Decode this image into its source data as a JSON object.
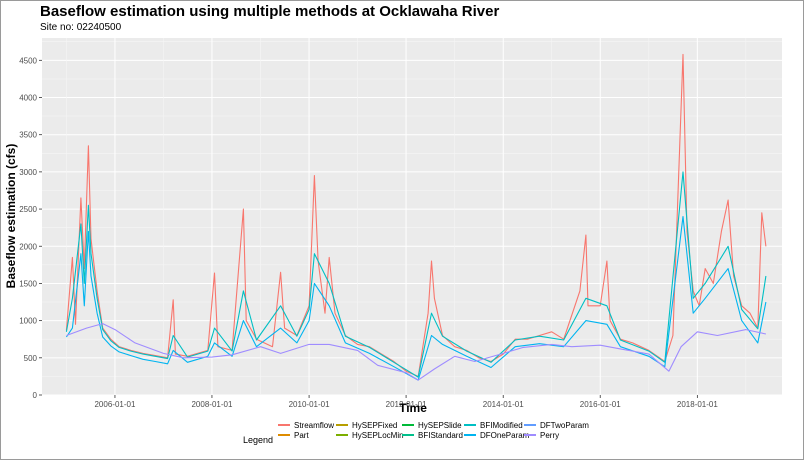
{
  "chart_data": {
    "type": "line",
    "title": "Baseflow estimation using multiple methods at Ocklawaha River",
    "subtitle": "Site no: 02240500",
    "xlabel": "Time",
    "ylabel": "Baseflow estimation (cfs)",
    "xlim": [
      "2004-07-01",
      "2019-09-30"
    ],
    "ylim": [
      0,
      4800
    ],
    "x_ticks": [
      "2006-01-01",
      "2008-01-01",
      "2010-01-01",
      "2012-01-01",
      "2014-01-01",
      "2016-01-01",
      "2018-01-01"
    ],
    "y_ticks": [
      0,
      500,
      1000,
      1500,
      2000,
      2500,
      3000,
      3500,
      4000,
      4500
    ],
    "grid": true,
    "legend": {
      "title": "Legend",
      "position": "bottom",
      "entries": [
        {
          "name": "Streamflow",
          "color": "#F8766D"
        },
        {
          "name": "Part",
          "color": "#DE8C00"
        },
        {
          "name": "HySEPFixed",
          "color": "#B79F00"
        },
        {
          "name": "HySEPLocMin",
          "color": "#7CAE00"
        },
        {
          "name": "HySEPSlide",
          "color": "#00BA38"
        },
        {
          "name": "BFIStandard",
          "color": "#00C08B"
        },
        {
          "name": "BFIModified",
          "color": "#00BFC4"
        },
        {
          "name": "DFOneParam",
          "color": "#00B4F0"
        },
        {
          "name": "DFTwoParam",
          "color": "#619CFF"
        },
        {
          "name": "Perry",
          "color": "#9F8CFF"
        }
      ]
    },
    "series": [
      {
        "name": "Streamflow",
        "color": "#F8766D",
        "points": [
          [
            "2005-01-01",
            870
          ],
          [
            "2005-02-15",
            1850
          ],
          [
            "2005-03-10",
            950
          ],
          [
            "2005-04-20",
            2650
          ],
          [
            "2005-05-15",
            1700
          ],
          [
            "2005-06-15",
            3350
          ],
          [
            "2005-07-05",
            2100
          ],
          [
            "2005-08-20",
            1400
          ],
          [
            "2005-10-01",
            900
          ],
          [
            "2005-12-01",
            750
          ],
          [
            "2006-02-01",
            650
          ],
          [
            "2006-05-01",
            600
          ],
          [
            "2006-08-01",
            560
          ],
          [
            "2006-11-01",
            530
          ],
          [
            "2007-02-01",
            500
          ],
          [
            "2007-03-15",
            1280
          ],
          [
            "2007-04-01",
            550
          ],
          [
            "2007-07-01",
            520
          ],
          [
            "2007-12-01",
            600
          ],
          [
            "2008-01-20",
            1640
          ],
          [
            "2008-02-15",
            650
          ],
          [
            "2008-06-01",
            600
          ],
          [
            "2008-08-25",
            2500
          ],
          [
            "2008-09-15",
            1000
          ],
          [
            "2008-12-01",
            750
          ],
          [
            "2009-04-01",
            650
          ],
          [
            "2009-06-01",
            1650
          ],
          [
            "2009-07-01",
            900
          ],
          [
            "2009-10-01",
            800
          ],
          [
            "2010-01-01",
            1200
          ],
          [
            "2010-02-10",
            2950
          ],
          [
            "2010-03-10",
            1800
          ],
          [
            "2010-05-01",
            1100
          ],
          [
            "2010-06-01",
            1850
          ],
          [
            "2010-07-15",
            1100
          ],
          [
            "2010-10-01",
            800
          ],
          [
            "2011-01-01",
            680
          ],
          [
            "2011-04-01",
            650
          ],
          [
            "2011-07-01",
            550
          ],
          [
            "2011-10-01",
            450
          ],
          [
            "2012-01-01",
            320
          ],
          [
            "2012-04-01",
            250
          ],
          [
            "2012-06-15",
            1100
          ],
          [
            "2012-07-10",
            1800
          ],
          [
            "2012-08-01",
            1300
          ],
          [
            "2012-10-01",
            800
          ],
          [
            "2013-01-01",
            650
          ],
          [
            "2013-04-01",
            600
          ],
          [
            "2013-07-01",
            500
          ],
          [
            "2013-10-01",
            450
          ],
          [
            "2014-01-01",
            550
          ],
          [
            "2014-04-01",
            750
          ],
          [
            "2014-07-01",
            750
          ],
          [
            "2014-10-01",
            800
          ],
          [
            "2015-01-01",
            850
          ],
          [
            "2015-04-01",
            750
          ],
          [
            "2015-08-01",
            1400
          ],
          [
            "2015-09-15",
            2150
          ],
          [
            "2015-10-01",
            1200
          ],
          [
            "2016-01-01",
            1200
          ],
          [
            "2016-02-20",
            1800
          ],
          [
            "2016-03-15",
            1000
          ],
          [
            "2016-06-01",
            750
          ],
          [
            "2016-09-01",
            700
          ],
          [
            "2017-01-01",
            600
          ],
          [
            "2017-05-01",
            450
          ],
          [
            "2017-07-01",
            800
          ],
          [
            "2017-09-15",
            4580
          ],
          [
            "2017-10-15",
            2200
          ],
          [
            "2017-12-01",
            1400
          ],
          [
            "2018-01-15",
            1200
          ],
          [
            "2018-03-01",
            1700
          ],
          [
            "2018-05-01",
            1500
          ],
          [
            "2018-07-01",
            2200
          ],
          [
            "2018-08-20",
            2620
          ],
          [
            "2018-10-01",
            1600
          ],
          [
            "2018-12-01",
            1200
          ],
          [
            "2019-02-01",
            1100
          ],
          [
            "2019-04-01",
            900
          ],
          [
            "2019-05-01",
            2450
          ],
          [
            "2019-06-01",
            2000
          ]
        ]
      },
      {
        "name": "BFIModified",
        "color": "#00BFC4",
        "points": [
          [
            "2005-01-01",
            850
          ],
          [
            "2005-02-15",
            1300
          ],
          [
            "2005-04-20",
            2300
          ],
          [
            "2005-05-15",
            1500
          ],
          [
            "2005-06-15",
            2550
          ],
          [
            "2005-07-05",
            1900
          ],
          [
            "2005-08-20",
            1300
          ],
          [
            "2005-10-01",
            880
          ],
          [
            "2005-12-01",
            730
          ],
          [
            "2006-02-01",
            640
          ],
          [
            "2006-05-01",
            590
          ],
          [
            "2006-08-01",
            550
          ],
          [
            "2006-11-01",
            520
          ],
          [
            "2007-02-01",
            490
          ],
          [
            "2007-03-15",
            800
          ],
          [
            "2007-07-01",
            510
          ],
          [
            "2007-12-01",
            590
          ],
          [
            "2008-01-20",
            900
          ],
          [
            "2008-06-01",
            590
          ],
          [
            "2008-08-25",
            1400
          ],
          [
            "2008-12-01",
            740
          ],
          [
            "2009-06-01",
            1200
          ],
          [
            "2009-10-01",
            790
          ],
          [
            "2010-01-01",
            1150
          ],
          [
            "2010-02-10",
            1900
          ],
          [
            "2010-06-01",
            1500
          ],
          [
            "2010-10-01",
            790
          ],
          [
            "2011-04-01",
            640
          ],
          [
            "2011-10-01",
            440
          ],
          [
            "2012-04-01",
            240
          ],
          [
            "2012-07-10",
            1100
          ],
          [
            "2012-10-01",
            790
          ],
          [
            "2013-04-01",
            590
          ],
          [
            "2013-10-01",
            440
          ],
          [
            "2014-04-01",
            740
          ],
          [
            "2014-10-01",
            790
          ],
          [
            "2015-04-01",
            740
          ],
          [
            "2015-09-15",
            1300
          ],
          [
            "2016-02-20",
            1200
          ],
          [
            "2016-06-01",
            740
          ],
          [
            "2017-01-01",
            590
          ],
          [
            "2017-05-01",
            440
          ],
          [
            "2017-09-15",
            3000
          ],
          [
            "2017-12-01",
            1300
          ],
          [
            "2018-03-01",
            1500
          ],
          [
            "2018-08-20",
            2000
          ],
          [
            "2018-12-01",
            1150
          ],
          [
            "2019-04-01",
            890
          ],
          [
            "2019-06-01",
            1600
          ]
        ]
      },
      {
        "name": "DFOneParam",
        "color": "#00B4F0",
        "points": [
          [
            "2005-01-01",
            780
          ],
          [
            "2005-02-15",
            900
          ],
          [
            "2005-04-20",
            1900
          ],
          [
            "2005-05-15",
            1200
          ],
          [
            "2005-06-15",
            2200
          ],
          [
            "2005-07-05",
            1600
          ],
          [
            "2005-08-20",
            1100
          ],
          [
            "2005-10-01",
            780
          ],
          [
            "2005-12-01",
            660
          ],
          [
            "2006-02-01",
            580
          ],
          [
            "2006-05-01",
            530
          ],
          [
            "2006-08-01",
            480
          ],
          [
            "2006-11-01",
            450
          ],
          [
            "2007-02-01",
            420
          ],
          [
            "2007-03-15",
            600
          ],
          [
            "2007-07-01",
            440
          ],
          [
            "2007-12-01",
            520
          ],
          [
            "2008-01-20",
            700
          ],
          [
            "2008-06-01",
            520
          ],
          [
            "2008-08-25",
            1000
          ],
          [
            "2008-12-01",
            650
          ],
          [
            "2009-06-01",
            900
          ],
          [
            "2009-10-01",
            700
          ],
          [
            "2010-01-01",
            1000
          ],
          [
            "2010-02-10",
            1500
          ],
          [
            "2010-06-01",
            1200
          ],
          [
            "2010-10-01",
            700
          ],
          [
            "2011-04-01",
            560
          ],
          [
            "2011-10-01",
            380
          ],
          [
            "2012-04-01",
            200
          ],
          [
            "2012-07-10",
            800
          ],
          [
            "2012-10-01",
            680
          ],
          [
            "2013-04-01",
            520
          ],
          [
            "2013-10-01",
            370
          ],
          [
            "2014-04-01",
            650
          ],
          [
            "2014-10-01",
            690
          ],
          [
            "2015-04-01",
            650
          ],
          [
            "2015-09-15",
            1000
          ],
          [
            "2016-02-20",
            950
          ],
          [
            "2016-06-01",
            650
          ],
          [
            "2017-01-01",
            520
          ],
          [
            "2017-05-01",
            380
          ],
          [
            "2017-09-15",
            2400
          ],
          [
            "2017-12-01",
            1100
          ],
          [
            "2018-03-01",
            1300
          ],
          [
            "2018-08-20",
            1700
          ],
          [
            "2018-12-01",
            1000
          ],
          [
            "2019-04-01",
            700
          ],
          [
            "2019-06-01",
            1250
          ]
        ]
      },
      {
        "name": "Perry",
        "color": "#9F8CFF",
        "points": [
          [
            "2005-01-01",
            800
          ],
          [
            "2005-06-01",
            900
          ],
          [
            "2005-10-01",
            960
          ],
          [
            "2006-01-01",
            880
          ],
          [
            "2006-06-01",
            700
          ],
          [
            "2007-01-01",
            560
          ],
          [
            "2007-06-01",
            500
          ],
          [
            "2008-01-01",
            510
          ],
          [
            "2008-06-01",
            540
          ],
          [
            "2009-01-01",
            650
          ],
          [
            "2009-06-01",
            560
          ],
          [
            "2010-01-01",
            680
          ],
          [
            "2010-06-01",
            680
          ],
          [
            "2011-01-01",
            600
          ],
          [
            "2011-06-01",
            400
          ],
          [
            "2012-01-01",
            300
          ],
          [
            "2012-04-01",
            200
          ],
          [
            "2012-08-01",
            350
          ],
          [
            "2013-01-01",
            520
          ],
          [
            "2013-06-01",
            450
          ],
          [
            "2014-01-01",
            560
          ],
          [
            "2014-06-01",
            640
          ],
          [
            "2015-01-01",
            680
          ],
          [
            "2015-06-01",
            650
          ],
          [
            "2016-01-01",
            670
          ],
          [
            "2016-06-01",
            620
          ],
          [
            "2017-01-01",
            550
          ],
          [
            "2017-06-01",
            320
          ],
          [
            "2017-09-01",
            650
          ],
          [
            "2018-01-01",
            850
          ],
          [
            "2018-06-01",
            800
          ],
          [
            "2019-01-01",
            880
          ],
          [
            "2019-06-01",
            820
          ]
        ]
      }
    ]
  }
}
